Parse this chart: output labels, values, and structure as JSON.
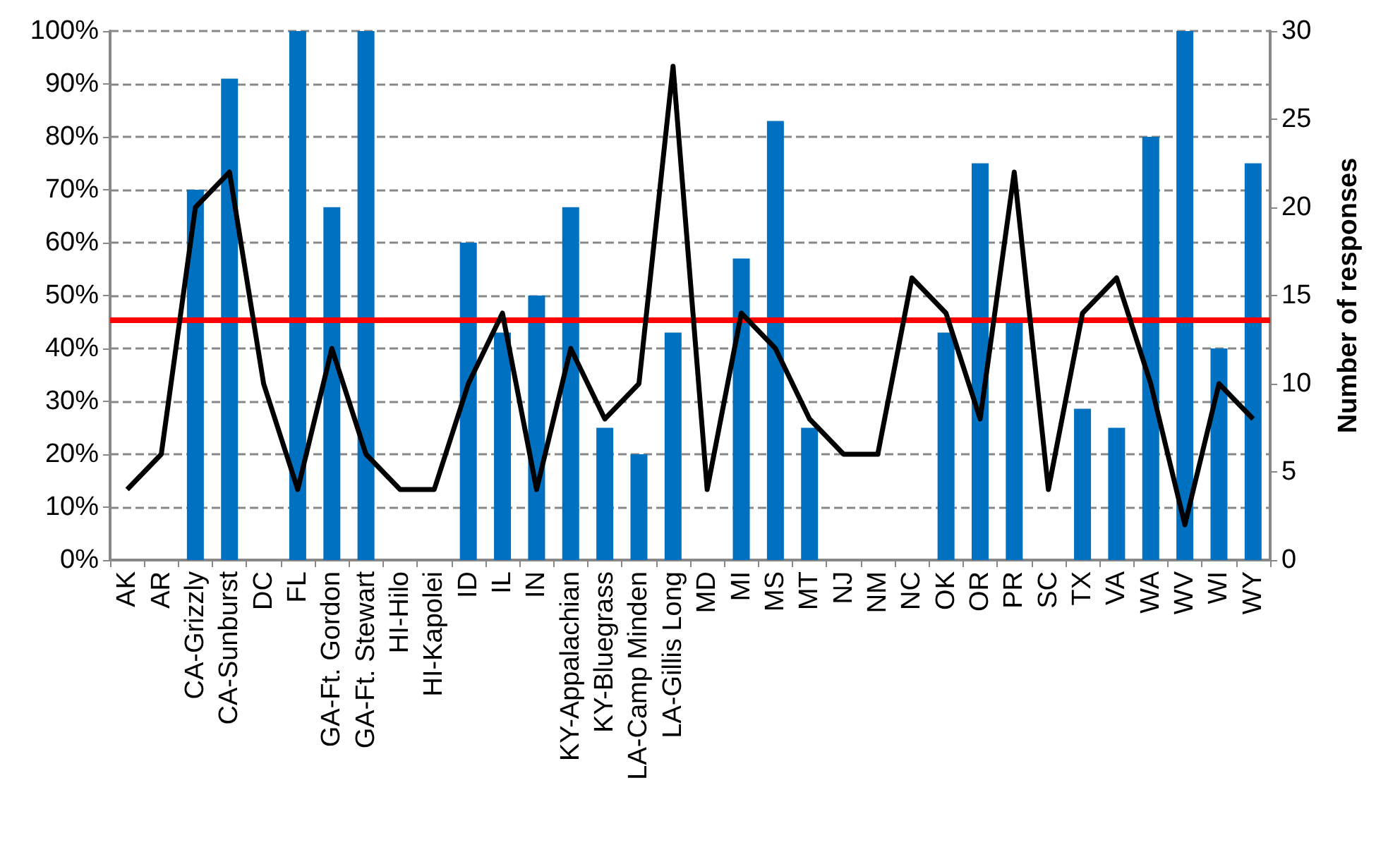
{
  "chart_data": {
    "type": "bar",
    "y2label": "Number of responses",
    "categories": [
      "AK",
      "AR",
      "CA-Grizzly",
      "CA-Sunburst",
      "DC",
      "FL",
      "GA-Ft. Gordon",
      "GA-Ft. Stewart",
      "HI-Hilo",
      "HI-Kapolei",
      "ID",
      "IL",
      "IN",
      "KY-Appalachian",
      "KY-Bluegrass",
      "LA-Camp Minden",
      "LA-Gillis Long",
      "MD",
      "MI",
      "MS",
      "MT",
      "NJ",
      "NM",
      "NC",
      "OK",
      "OR",
      "PR",
      "SC",
      "TX",
      "VA",
      "WA",
      "WV",
      "WI",
      "WY"
    ],
    "series": [
      {
        "color": "#0070c0",
        "values": [
          0,
          0,
          70,
          91,
          0,
          100,
          66.7,
          100,
          0,
          0,
          60,
          43,
          50,
          66.7,
          25,
          20,
          43,
          0,
          57,
          83,
          25,
          0,
          0,
          0,
          43,
          75,
          45,
          0,
          28.6,
          25,
          80,
          100,
          40,
          75
        ]
      },
      {
        "type": "line",
        "axis": "y2",
        "color": "#000000",
        "values": [
          4,
          6,
          20,
          22,
          10,
          4,
          12,
          6,
          4,
          4,
          10,
          14,
          4,
          12,
          8,
          10,
          28,
          4,
          14,
          12,
          8,
          6,
          6,
          16,
          14,
          8,
          22,
          4,
          14,
          16,
          10,
          2,
          10,
          8
        ]
      }
    ],
    "ylim": [
      0,
      100
    ],
    "yticks": [
      {
        "value": 0,
        "label": "0%"
      },
      {
        "value": 10,
        "label": "10%"
      },
      {
        "value": 20,
        "label": "20%"
      },
      {
        "value": 30,
        "label": "30%"
      },
      {
        "value": 40,
        "label": "40%"
      },
      {
        "value": 50,
        "label": "50%"
      },
      {
        "value": 60,
        "label": "60%"
      },
      {
        "value": 70,
        "label": "70%"
      },
      {
        "value": 80,
        "label": "80%"
      },
      {
        "value": 90,
        "label": "90%"
      },
      {
        "value": 100,
        "label": "100%"
      }
    ],
    "y2lim": [
      0,
      30
    ],
    "y2ticks": [
      0,
      5,
      10,
      15,
      20,
      25,
      30
    ],
    "ref_lines": [
      {
        "axis": "y",
        "value": 45.5,
        "color": "#ff0000"
      }
    ],
    "grid": "y",
    "legend": false,
    "marker": "none",
    "line_style": "solid"
  }
}
